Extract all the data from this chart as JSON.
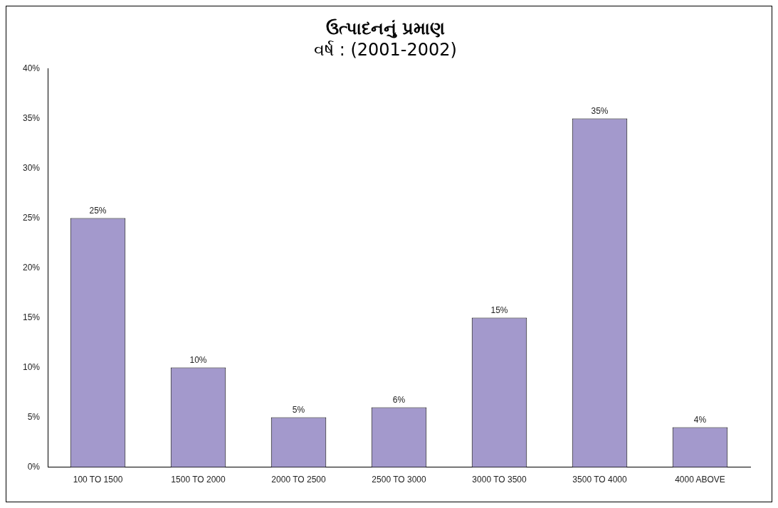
{
  "chart_data": {
    "type": "bar",
    "title": "ઉત્પાદનનું પ્રમાણ",
    "subtitle": "વર્ષ : (2001-2002)",
    "categories": [
      "100 TO 1500",
      "1500 TO 2000",
      "2000 TO 2500",
      "2500 TO 3000",
      "3000 TO 3500",
      "3500 TO 4000",
      "4000 ABOVE"
    ],
    "values": [
      25,
      10,
      5,
      6,
      15,
      35,
      4
    ],
    "value_labels": [
      "25%",
      "10%",
      "5%",
      "6%",
      "15%",
      "35%",
      "4%"
    ],
    "color": "#a399cc",
    "ylim": [
      0,
      40
    ],
    "yticks": [
      {
        "value": 0,
        "label": "0%"
      },
      {
        "value": 5,
        "label": "5%"
      },
      {
        "value": 10,
        "label": "10%"
      },
      {
        "value": 15,
        "label": "15%"
      },
      {
        "value": 20,
        "label": "20%"
      },
      {
        "value": 25,
        "label": "25%"
      },
      {
        "value": 30,
        "label": "30%"
      },
      {
        "value": 35,
        "label": "35%"
      },
      {
        "value": 40,
        "label": "40%"
      }
    ],
    "grid": false,
    "legend": false
  }
}
